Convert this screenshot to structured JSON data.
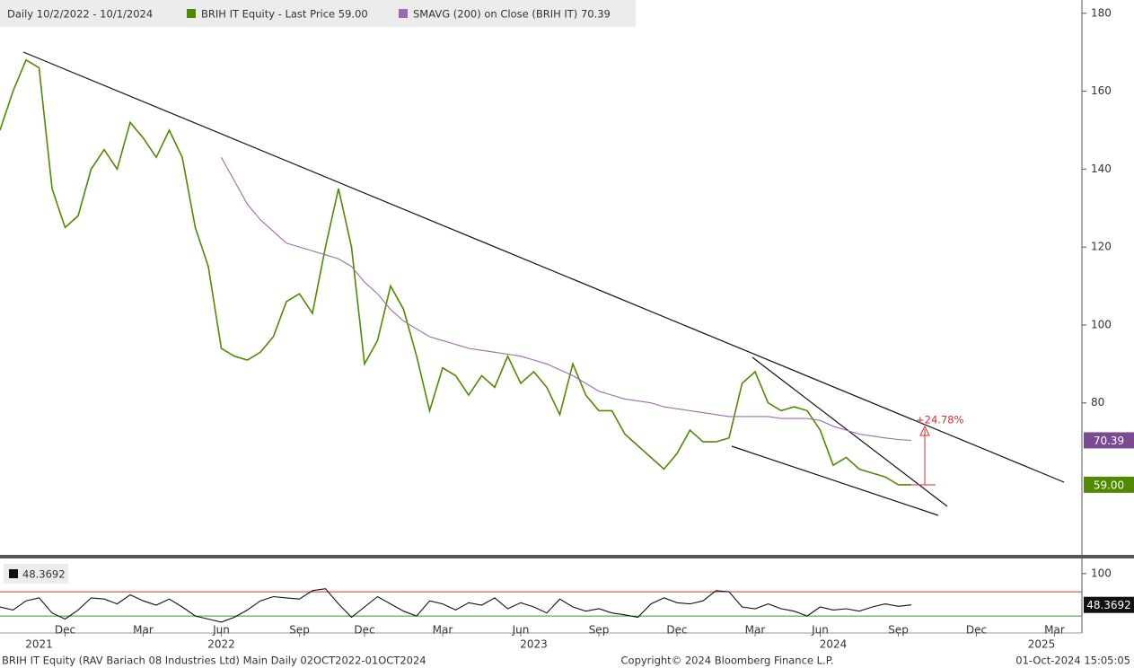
{
  "chart_data": [
    {
      "type": "line",
      "legend": [
        "Daily 10/2/2022 - 10/1/2024",
        "BRIH IT Equity - Last Price 59.00",
        "SMAVG (200)  on Close (BRIH IT) 70.39"
      ],
      "categories": [
        null,
        null,
        null,
        null,
        null,
        "Dec",
        null,
        null,
        null,
        null,
        null,
        "Mar",
        null,
        null,
        null,
        null,
        null,
        "Jun",
        null,
        null,
        null,
        null,
        null,
        "Sep",
        null,
        null,
        null,
        null,
        "Dec",
        null,
        null,
        null,
        null,
        null,
        "Mar",
        null,
        null,
        null,
        null,
        null,
        "Jun",
        null,
        null,
        null,
        null,
        null,
        "Sep",
        null,
        null,
        null,
        null,
        null,
        "Dec",
        null,
        null,
        null,
        null,
        null,
        "Mar",
        null,
        null,
        null,
        null,
        "Jun",
        null,
        null,
        null,
        null,
        null,
        "Sep",
        null,
        null,
        null,
        null,
        null,
        "Dec",
        null,
        null,
        null,
        null,
        null,
        "Mar",
        null,
        null
      ],
      "year_categories": [
        null,
        null,
        null,
        "2021",
        null,
        null,
        null,
        null,
        null,
        null,
        null,
        null,
        null,
        null,
        null,
        null,
        null,
        "2022",
        null,
        null,
        null,
        null,
        null,
        null,
        null,
        null,
        null,
        null,
        null,
        null,
        null,
        null,
        null,
        null,
        null,
        null,
        null,
        null,
        null,
        null,
        null,
        "2023",
        null,
        null,
        null,
        null,
        null,
        null,
        null,
        null,
        null,
        null,
        null,
        null,
        null,
        null,
        null,
        null,
        null,
        null,
        null,
        null,
        null,
        null,
        "2024",
        null,
        null,
        null,
        null,
        null,
        null,
        null,
        null,
        null,
        null,
        null,
        null,
        null,
        null,
        null,
        "2025",
        null,
        null,
        null
      ],
      "series": [
        {
          "name": "BRIH IT Equity - Last Price",
          "color": "#4f8a00",
          "values": [
            150,
            160,
            168,
            166,
            135,
            125,
            128,
            140,
            145,
            140,
            152,
            148,
            143,
            150,
            143,
            125,
            115,
            94,
            92,
            91,
            93,
            97,
            106,
            108,
            103,
            120,
            135,
            120,
            90,
            96,
            110,
            104,
            92,
            78,
            89,
            87,
            82,
            87,
            84,
            92,
            85,
            88,
            84,
            77,
            90,
            82,
            78,
            78,
            72,
            69,
            66,
            63,
            67,
            73,
            70,
            70,
            71,
            85,
            88,
            80,
            78,
            79,
            78,
            73,
            64,
            66,
            63,
            62,
            61,
            59,
            59,
            null,
            null,
            null,
            null,
            null,
            null,
            null,
            null,
            null,
            null,
            null,
            null,
            null
          ]
        },
        {
          "name": "SMAVG (200)  on Close (BRIH IT)",
          "color": "#9b6bb0",
          "values": [
            null,
            null,
            null,
            null,
            null,
            null,
            null,
            null,
            null,
            null,
            null,
            null,
            null,
            null,
            null,
            null,
            null,
            143,
            137,
            131,
            127,
            124,
            121,
            120,
            119,
            118,
            117,
            115,
            111,
            108,
            104,
            101,
            99,
            97,
            96,
            95,
            94,
            93.5,
            93,
            92.5,
            92,
            91,
            90,
            88.5,
            87,
            85,
            83,
            82,
            81,
            80.5,
            80,
            79,
            78.5,
            78,
            77.5,
            77,
            76.5,
            76.5,
            76.5,
            76.5,
            76,
            76,
            76,
            75.5,
            74,
            73,
            72,
            71.5,
            71,
            70.6,
            70.39,
            null,
            null,
            null,
            null,
            null,
            null,
            null,
            null,
            null,
            null,
            null,
            null,
            null
          ]
        }
      ],
      "tags": [
        "70.39",
        "59.00"
      ],
      "annotation": "+24.78%",
      "ylim": [
        41,
        183.4
      ],
      "yticks": [
        80,
        100,
        120,
        140,
        160,
        180
      ]
    },
    {
      "type": "line",
      "legend": "48.3692",
      "series": [
        {
          "name": "RSI",
          "color": "#111111",
          "values": [
            45,
            40,
            55,
            60,
            35,
            25,
            40,
            60,
            58,
            50,
            65,
            55,
            48,
            58,
            45,
            30,
            25,
            20,
            28,
            40,
            55,
            62,
            60,
            58,
            72,
            75,
            50,
            28,
            45,
            62,
            50,
            38,
            30,
            55,
            50,
            40,
            52,
            48,
            60,
            42,
            52,
            45,
            35,
            58,
            45,
            38,
            42,
            35,
            32,
            28,
            50,
            60,
            52,
            50,
            55,
            72,
            70,
            45,
            42,
            50,
            42,
            38,
            30,
            45,
            40,
            42,
            38,
            45,
            50,
            46,
            48.3692,
            null,
            null,
            null,
            null,
            null,
            null,
            null,
            null,
            null,
            null,
            null,
            null,
            null
          ]
        }
      ],
      "levels": [
        {
          "value": 70,
          "color": "#c0392b"
        },
        {
          "value": 30,
          "color": "#2e9e2e"
        }
      ],
      "tag": "48.3692",
      "ylim": [
        2,
        125
      ],
      "yticks": [
        100
      ]
    }
  ],
  "footer": {
    "left": "BRIH IT Equity (RAV Bariach 08 Industries Ltd) Main  Daily 02OCT2022-01OCT2024",
    "center": "Copyright© 2024 Bloomberg Finance L.P.",
    "right": "01-Oct-2024 15:05:05"
  }
}
